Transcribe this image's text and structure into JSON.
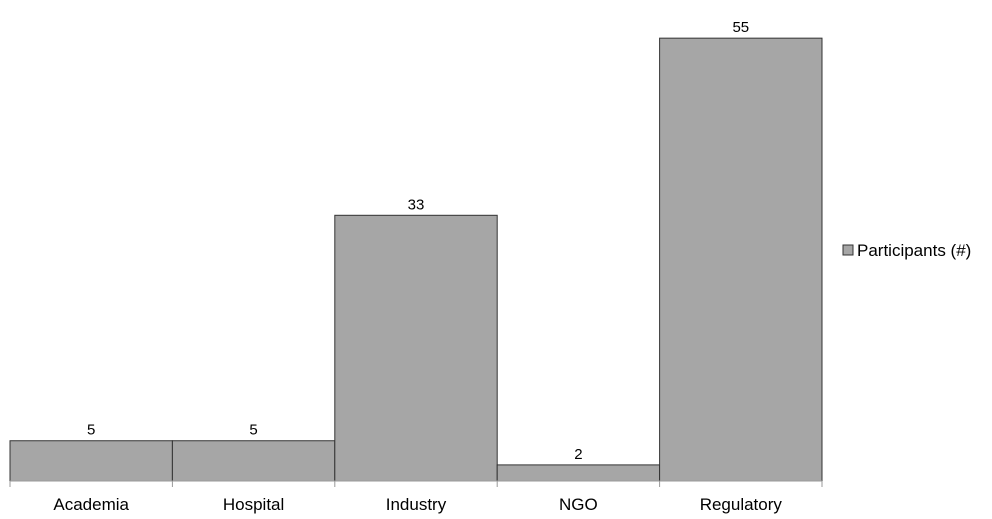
{
  "chart_data": {
    "type": "bar",
    "categories": [
      "Academia",
      "Hospital",
      "Industry",
      "NGO",
      "Regulatory"
    ],
    "series": [
      {
        "name": "Participants (#)",
        "values": [
          5,
          5,
          33,
          2,
          55
        ]
      }
    ],
    "data_labels": [
      "5",
      "5",
      "33",
      "2",
      "55"
    ],
    "ylim": [
      0,
      58
    ],
    "grid": false,
    "legend_position": "right",
    "colors": {
      "bar_fill": "#a6a6a6",
      "bar_stroke": "#333333",
      "axis": "#999999"
    }
  }
}
